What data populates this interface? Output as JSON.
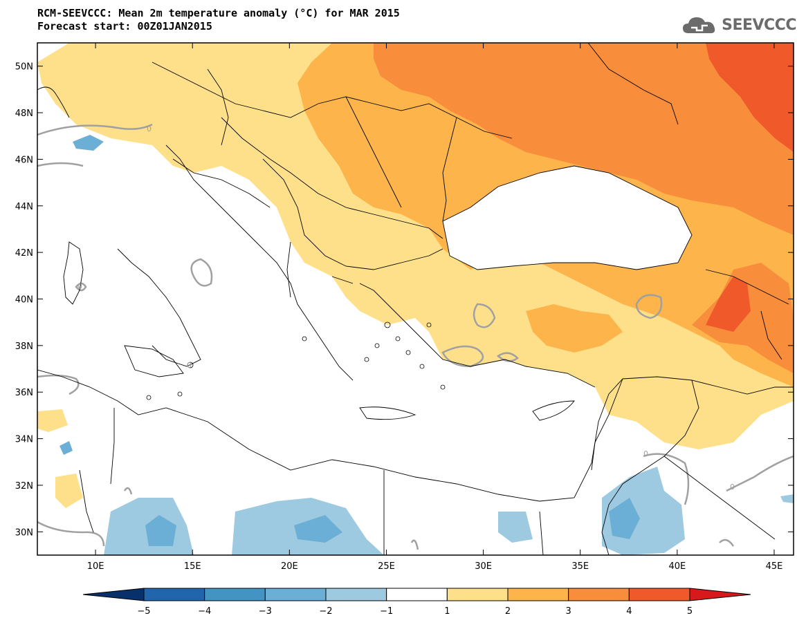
{
  "header": {
    "title_line1": "RCM-SEEVCCC: Mean 2m temperature anomaly (°C) for MAR 2015",
    "title_line2": "Forecast start: 00Z01JAN2015"
  },
  "logo": {
    "text": "SEEVCCC",
    "icon": "cloud-icon"
  },
  "map": {
    "lon_labels": [
      "10E",
      "15E",
      "20E",
      "25E",
      "30E",
      "35E",
      "40E",
      "45E"
    ],
    "lat_labels": [
      "50N",
      "48N",
      "46N",
      "44N",
      "42N",
      "40N",
      "38N",
      "36N",
      "34N",
      "32N",
      "30N"
    ],
    "lon_values": [
      10,
      15,
      20,
      25,
      30,
      35,
      40,
      45
    ],
    "lat_values": [
      50,
      48,
      46,
      44,
      42,
      40,
      38,
      36,
      34,
      32,
      30
    ],
    "extent": {
      "lon_min": 7,
      "lon_max": 46,
      "lat_min": 29,
      "lat_max": 51
    },
    "contour_label": "0"
  },
  "colorbar": {
    "labels": [
      "−5",
      "−4",
      "−3",
      "−2",
      "−1",
      "1",
      "2",
      "3",
      "4",
      "5"
    ],
    "colors": [
      "#08306b",
      "#2166ac",
      "#4393c3",
      "#6baed6",
      "#9ecae1",
      "#ffffff",
      "#fee08b",
      "#fdb44b",
      "#f88d3b",
      "#f05a2a",
      "#d7191c"
    ]
  },
  "colors": {
    "warm1": "#fee08b",
    "warm2": "#fdb44b",
    "warm3": "#f88d3b",
    "warm4": "#f05a2a",
    "cool1": "#9ecae1",
    "cool2": "#6baed6",
    "contour": "#a0a0a0"
  }
}
